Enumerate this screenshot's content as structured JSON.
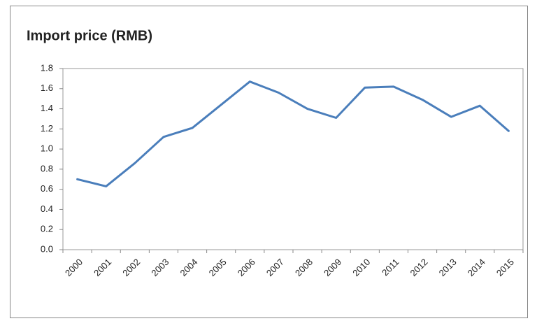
{
  "chart_data": {
    "type": "line",
    "title": "Import price (RMB)",
    "categories": [
      "2000",
      "2001",
      "2002",
      "2003",
      "2004",
      "2005",
      "2006",
      "2007",
      "2008",
      "2009",
      "2010",
      "2011",
      "2012",
      "2013",
      "2014",
      "2015"
    ],
    "values": [
      0.7,
      0.63,
      0.86,
      1.12,
      1.21,
      1.44,
      1.67,
      1.56,
      1.4,
      1.31,
      1.61,
      1.62,
      1.49,
      1.32,
      1.43,
      1.18
    ],
    "color": "#4a7ebb",
    "ylim": [
      0,
      1.8
    ],
    "yticks": [
      {
        "value": 0,
        "label": "0.0"
      },
      0.2,
      0.4,
      0.6,
      0.8,
      {
        "value": 1,
        "label": "1.0"
      },
      1.2,
      1.4,
      1.6,
      1.8
    ],
    "grid": false
  }
}
